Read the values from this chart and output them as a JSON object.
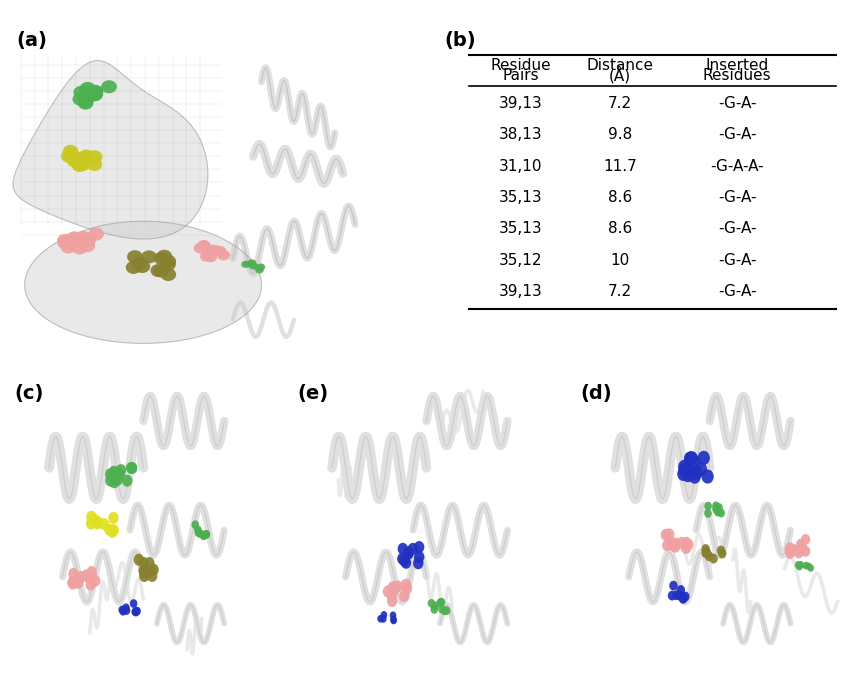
{
  "table_headers": [
    "Residue\nPairs",
    "Distance\n(Å)",
    "Inserted\nResidues"
  ],
  "table_rows": [
    [
      "39,13",
      "7.2",
      "-G-A-"
    ],
    [
      "38,13",
      "9.8",
      "-G-A-"
    ],
    [
      "31,10",
      "11.7",
      "-G-A-A-"
    ],
    [
      "35,13",
      "8.6",
      "-G-A-"
    ],
    [
      "35,13",
      "8.6",
      "-G-A-"
    ],
    [
      "35,12",
      "10",
      "-G-A-"
    ],
    [
      "39,13",
      "7.2",
      "-G-A-"
    ]
  ],
  "panel_labels": [
    "(a)",
    "(b)",
    "(c)",
    "(e)",
    "(d)"
  ],
  "bg_color": "#ffffff",
  "table_font_size": 11,
  "label_font_size": 14,
  "label_font_weight": "bold"
}
